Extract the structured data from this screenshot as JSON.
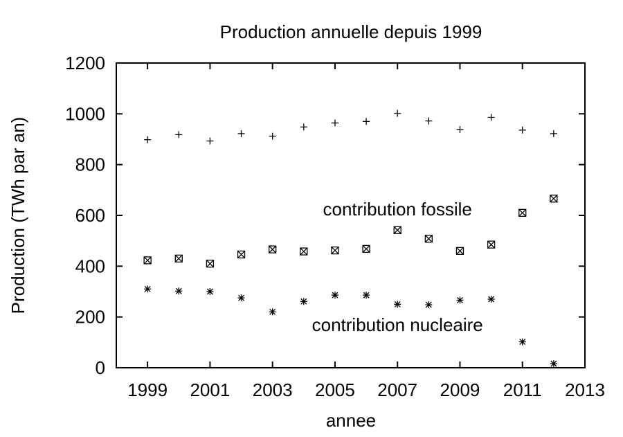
{
  "chart_data": {
    "type": "scatter",
    "title": "Production annuelle depuis 1999",
    "xlabel": "annee",
    "ylabel": "Production (TWh par an)",
    "xlim": [
      1998,
      2013
    ],
    "ylim": [
      0,
      1200
    ],
    "x_ticks": [
      "1999",
      "2001",
      "2003",
      "2005",
      "2007",
      "2009",
      "2011",
      "2013"
    ],
    "y_ticks": [
      "0",
      "200",
      "400",
      "600",
      "800",
      "1000",
      "1200"
    ],
    "grid": false,
    "legend": "none",
    "annotations": [
      {
        "text": "contribution fossile",
        "x": 2007,
        "y": 600
      },
      {
        "text": "contribution nucleaire",
        "x": 2007,
        "y": 145
      }
    ],
    "x": [
      1999,
      2000,
      2001,
      2002,
      2003,
      2004,
      2005,
      2006,
      2007,
      2008,
      2009,
      2010,
      2011,
      2012
    ],
    "series": [
      {
        "marker": "plus",
        "values": [
          898,
          918,
          893,
          922,
          912,
          948,
          964,
          970,
          1002,
          972,
          938,
          986,
          936,
          922
        ]
      },
      {
        "marker": "boxed-x",
        "values": [
          423,
          430,
          410,
          446,
          466,
          458,
          462,
          468,
          542,
          508,
          460,
          485,
          610,
          666
        ]
      },
      {
        "marker": "asterisk",
        "values": [
          310,
          302,
          300,
          275,
          220,
          261,
          286,
          286,
          250,
          248,
          266,
          270,
          102,
          16
        ]
      }
    ]
  }
}
